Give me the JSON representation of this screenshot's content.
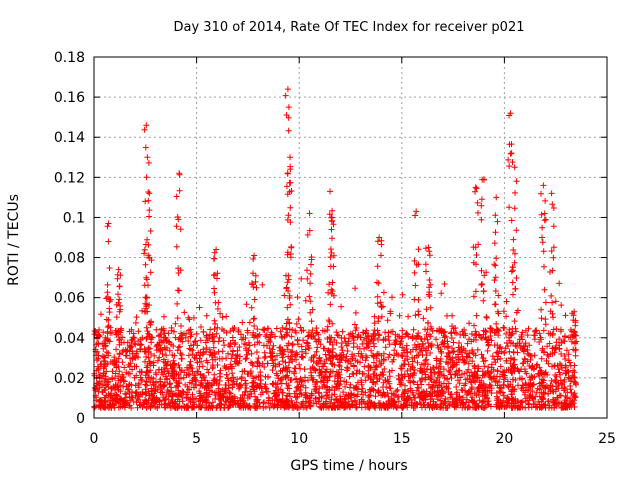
{
  "chart_data": {
    "type": "scatter",
    "title": "Day 310 of 2014, Rate Of TEC Index for receiver p021",
    "xlabel": "GPS time / hours",
    "ylabel": "ROTI / TECUs",
    "xlim": [
      0,
      25
    ],
    "ylim": [
      0,
      0.18
    ],
    "grid": true,
    "marker": "+",
    "color": "#ff0000",
    "x_ticks": [
      "0",
      "5",
      "10",
      "15",
      "20",
      "25"
    ],
    "y_ticks": [
      "0",
      "0.02",
      "0.04",
      "0.06",
      "0.08",
      "0.1",
      "0.12",
      "0.14",
      "0.16",
      "0.18"
    ],
    "x_tick_values": [
      0,
      5,
      10,
      15,
      20,
      25
    ],
    "y_tick_values": [
      0,
      0.02,
      0.04,
      0.06,
      0.08,
      0.1,
      0.12,
      0.14,
      0.16,
      0.18
    ],
    "series": [
      {
        "name": "ROTI",
        "time_range_hours": [
          0,
          23.5
        ],
        "baseline_range": [
          0.005,
          0.045
        ],
        "peaks": [
          {
            "x": 0.7,
            "y": 0.097
          },
          {
            "x": 1.2,
            "y": 0.074
          },
          {
            "x": 2.55,
            "y": 0.146
          },
          {
            "x": 2.6,
            "y": 0.13
          },
          {
            "x": 2.7,
            "y": 0.112
          },
          {
            "x": 4.15,
            "y": 0.122
          },
          {
            "x": 5.95,
            "y": 0.084
          },
          {
            "x": 7.8,
            "y": 0.081
          },
          {
            "x": 9.45,
            "y": 0.164
          },
          {
            "x": 9.5,
            "y": 0.155
          },
          {
            "x": 9.55,
            "y": 0.13
          },
          {
            "x": 10.5,
            "y": 0.102
          },
          {
            "x": 11.5,
            "y": 0.113
          },
          {
            "x": 11.6,
            "y": 0.1
          },
          {
            "x": 13.9,
            "y": 0.09
          },
          {
            "x": 15.7,
            "y": 0.103
          },
          {
            "x": 16.3,
            "y": 0.085
          },
          {
            "x": 18.6,
            "y": 0.115
          },
          {
            "x": 19.0,
            "y": 0.119
          },
          {
            "x": 19.6,
            "y": 0.11
          },
          {
            "x": 20.3,
            "y": 0.152
          },
          {
            "x": 20.5,
            "y": 0.125
          },
          {
            "x": 21.9,
            "y": 0.116
          },
          {
            "x": 22.3,
            "y": 0.112
          },
          {
            "x": 23.4,
            "y": 0.053
          }
        ]
      }
    ]
  }
}
